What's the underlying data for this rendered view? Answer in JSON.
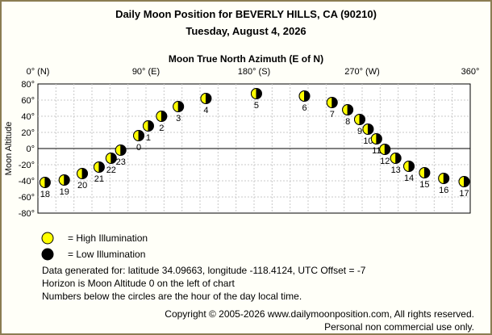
{
  "header": {
    "title": "Daily Moon Position for BEVERLY HILLS, CA (90210)",
    "date": "Tuesday, August 4, 2026"
  },
  "chart_data": {
    "type": "scatter",
    "title": "Moon True North Azimuth (E of N)",
    "xlabel": "Moon True North Azimuth (E of N)",
    "ylabel": "Moon Altitude",
    "xlim": [
      0,
      360
    ],
    "ylim": [
      -80,
      80
    ],
    "x_ticks": [
      {
        "value": 0,
        "label": "0° (N)"
      },
      {
        "value": 90,
        "label": "90° (E)"
      },
      {
        "value": 180,
        "label": "180° (S)"
      },
      {
        "value": 270,
        "label": "270° (W)"
      },
      {
        "value": 360,
        "label": "360°"
      }
    ],
    "y_ticks": [
      {
        "value": 80,
        "label": "80°"
      },
      {
        "value": 60,
        "label": "60°"
      },
      {
        "value": 40,
        "label": "40°"
      },
      {
        "value": 20,
        "label": "20°"
      },
      {
        "value": 0,
        "label": "0°"
      },
      {
        "value": -20,
        "label": "-20°"
      },
      {
        "value": -40,
        "label": "-40°"
      },
      {
        "value": -60,
        "label": "-60°"
      },
      {
        "value": -80,
        "label": "-80°"
      }
    ],
    "grid": true,
    "horizon_altitude": 0,
    "points": [
      {
        "hour": "18",
        "azimuth": 6,
        "altitude": -42,
        "illumination": "mixed"
      },
      {
        "hour": "19",
        "azimuth": 22,
        "altitude": -39,
        "illumination": "mixed"
      },
      {
        "hour": "20",
        "azimuth": 37,
        "altitude": -31,
        "illumination": "mixed"
      },
      {
        "hour": "21",
        "azimuth": 51,
        "altitude": -23,
        "illumination": "mixed"
      },
      {
        "hour": "22",
        "azimuth": 61,
        "altitude": -12,
        "illumination": "mixed"
      },
      {
        "hour": "23",
        "azimuth": 69,
        "altitude": -2,
        "illumination": "mixed"
      },
      {
        "hour": "0",
        "azimuth": 84,
        "altitude": 16,
        "illumination": "mixed"
      },
      {
        "hour": "1",
        "azimuth": 92,
        "altitude": 28,
        "illumination": "mixed"
      },
      {
        "hour": "2",
        "azimuth": 103,
        "altitude": 40,
        "illumination": "mixed"
      },
      {
        "hour": "3",
        "azimuth": 117,
        "altitude": 52,
        "illumination": "mixed"
      },
      {
        "hour": "4",
        "azimuth": 140,
        "altitude": 62,
        "illumination": "mixed"
      },
      {
        "hour": "5",
        "azimuth": 182,
        "altitude": 68,
        "illumination": "mixed"
      },
      {
        "hour": "6",
        "azimuth": 222,
        "altitude": 65,
        "illumination": "mixed"
      },
      {
        "hour": "7",
        "azimuth": 245,
        "altitude": 57,
        "illumination": "mixed"
      },
      {
        "hour": "8",
        "azimuth": 258,
        "altitude": 48,
        "illumination": "mixed"
      },
      {
        "hour": "9",
        "azimuth": 268,
        "altitude": 36,
        "illumination": "mixed"
      },
      {
        "hour": "10",
        "azimuth": 275,
        "altitude": 24,
        "illumination": "mixed"
      },
      {
        "hour": "11",
        "azimuth": 282,
        "altitude": 12,
        "illumination": "mixed"
      },
      {
        "hour": "12",
        "azimuth": 289,
        "altitude": -1,
        "illumination": "mixed"
      },
      {
        "hour": "13",
        "azimuth": 298,
        "altitude": -12,
        "illumination": "mixed"
      },
      {
        "hour": "14",
        "azimuth": 309,
        "altitude": -22,
        "illumination": "mixed"
      },
      {
        "hour": "15",
        "azimuth": 322,
        "altitude": -30,
        "illumination": "mixed"
      },
      {
        "hour": "16",
        "azimuth": 338,
        "altitude": -37,
        "illumination": "mixed"
      },
      {
        "hour": "17",
        "azimuth": 355,
        "altitude": -41,
        "illumination": "mixed"
      }
    ]
  },
  "legend": {
    "high_label": "= High Illumination",
    "low_label": "= Low Illumination",
    "high_color": "#ffff00",
    "low_color": "#000000"
  },
  "info": {
    "line1": "Data generated for: latitude 34.09663, longitude -118.4124, UTC Offset = -7",
    "line2": "Horizon is Moon Altitude 0 on the left of chart",
    "line3": "Numbers below the circles are the hour of the day local time."
  },
  "footer": {
    "copyright": "Copyright © 2005-2026 www.dailymoonposition.com, All rights reserved.",
    "personal": "Personal non commercial use only."
  }
}
